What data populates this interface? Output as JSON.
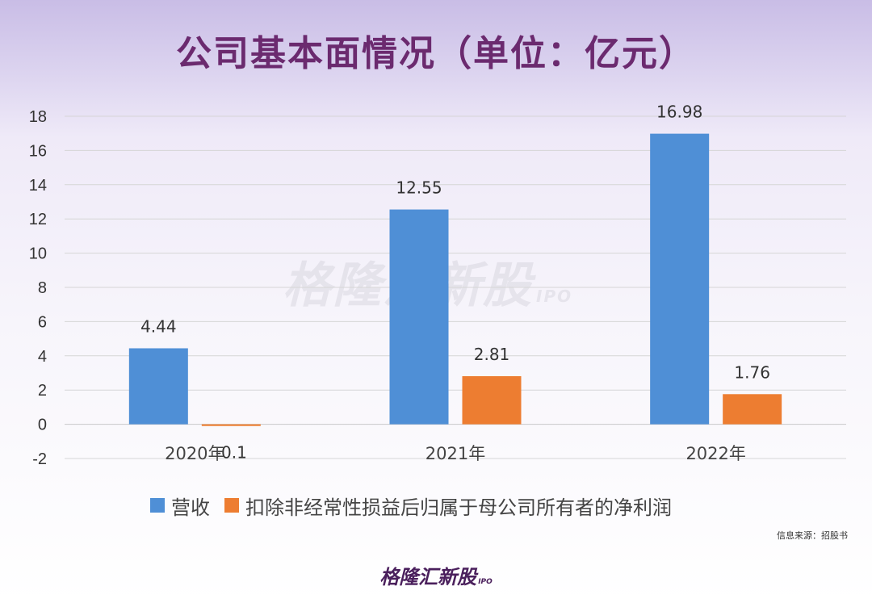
{
  "header": {
    "title": "公司基本面情况（单位：亿元）"
  },
  "chart_data": {
    "type": "bar",
    "title": "公司基本面情况（单位：亿元）",
    "categories": [
      "2020年",
      "2021年",
      "2022年"
    ],
    "series": [
      {
        "name": "营收",
        "values": [
          4.44,
          12.55,
          16.98
        ],
        "color": "#4f8fd6"
      },
      {
        "name": "扣除非经常性损益后归属于母公司所有者的净利润",
        "values": [
          -0.1,
          2.81,
          1.76
        ],
        "color": "#ed7d31"
      }
    ],
    "data_labels": [
      [
        "4.44",
        "12.55",
        "16.98"
      ],
      [
        "-0.1",
        "2.81",
        "1.76"
      ]
    ],
    "ylim": [
      -2,
      18
    ],
    "yticks": [
      -2,
      0,
      2,
      4,
      6,
      8,
      10,
      12,
      14,
      16,
      18
    ],
    "grid": true,
    "legend_position": "bottom",
    "xlabel": "",
    "ylabel": ""
  },
  "legend": {
    "items": [
      "营收",
      "扣除非经常性损益后归属于母公司所有者的净利润"
    ]
  },
  "source": "信息来源：招股书",
  "watermark": {
    "text": "格隆汇新股",
    "sub": "IPO"
  },
  "logo": {
    "text": "格隆汇新股",
    "sub": "IPO"
  }
}
